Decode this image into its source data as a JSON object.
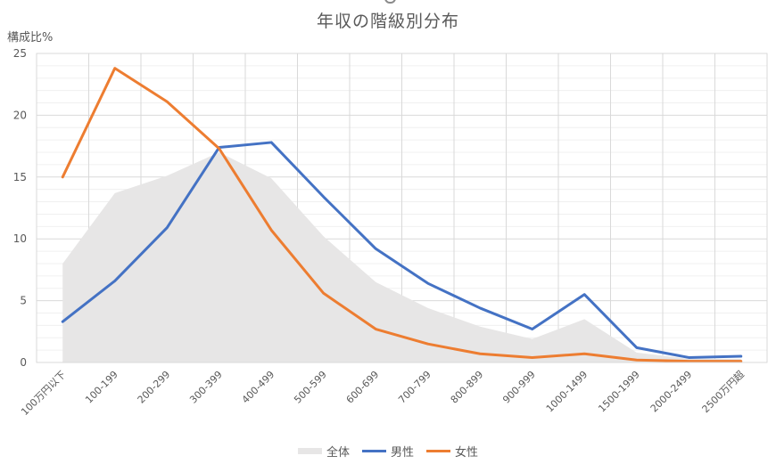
{
  "chart_data": {
    "type": "line",
    "title": "年収の階級別分布",
    "xlabel": "",
    "ylabel": "構成比%",
    "ylim": [
      0,
      25
    ],
    "yticks": [
      0,
      5,
      10,
      15,
      20,
      25
    ],
    "grid": true,
    "legend_position": "bottom",
    "categories": [
      "100万円以下",
      "100-199",
      "200-299",
      "300-399",
      "400-499",
      "500-599",
      "600-699",
      "700-799",
      "800-899",
      "900-999",
      "1000-1499",
      "1500-1999",
      "2000-2499",
      "2500万円超"
    ],
    "series": [
      {
        "name": "全体",
        "kind": "area",
        "color": "#e7e6e6",
        "values": [
          8.0,
          13.7,
          15.1,
          17.0,
          14.9,
          10.2,
          6.5,
          4.4,
          2.9,
          1.9,
          3.5,
          0.8,
          0.3,
          0.3
        ]
      },
      {
        "name": "男性",
        "kind": "line",
        "color": "#4472c4",
        "values": [
          3.3,
          6.6,
          10.9,
          17.4,
          17.8,
          13.4,
          9.2,
          6.4,
          4.4,
          2.7,
          5.5,
          1.2,
          0.4,
          0.5
        ]
      },
      {
        "name": "女性",
        "kind": "line",
        "color": "#ed7d31",
        "values": [
          15.0,
          23.8,
          21.1,
          17.3,
          10.7,
          5.6,
          2.7,
          1.5,
          0.7,
          0.4,
          0.7,
          0.2,
          0.1,
          0.1
        ]
      }
    ]
  },
  "legend": {
    "items": [
      {
        "label": "全体",
        "color": "#e7e6e6"
      },
      {
        "label": "男性",
        "color": "#4472c4"
      },
      {
        "label": "女性",
        "color": "#ed7d31"
      }
    ]
  }
}
